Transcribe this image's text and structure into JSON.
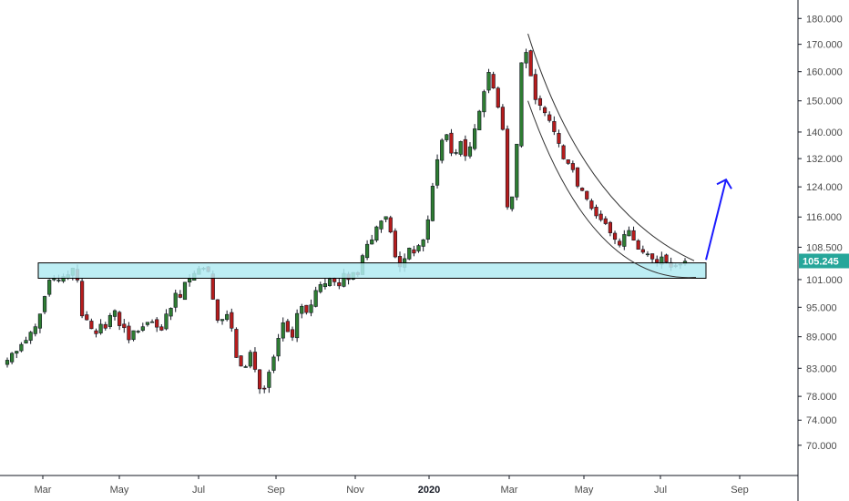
{
  "chart_data": {
    "type": "candlestick",
    "x_labels": [
      "Mar",
      "May",
      "Jul",
      "Sep",
      "Nov",
      "2020",
      "Mar",
      "May",
      "Jul",
      "Sep"
    ],
    "x_label_bold": [
      false,
      false,
      false,
      false,
      false,
      true,
      false,
      false,
      false,
      false
    ],
    "y_ticks": [
      70,
      74,
      78,
      83,
      89,
      95,
      101,
      108.5,
      116,
      124,
      132,
      140,
      150,
      160,
      170,
      180
    ],
    "y_tick_labels": [
      "70.000",
      "74.000",
      "78.000",
      "83.000",
      "89.000",
      "95.000",
      "101.000",
      "108.500",
      "116.000",
      "124.000",
      "132.000",
      "140.000",
      "150.000",
      "160.000",
      "170.000",
      "180.000"
    ],
    "ylim": [
      66,
      186
    ],
    "log_scale": true,
    "grid": false,
    "current_price": 105.245,
    "current_price_label": "105.245",
    "up_color": "#26a69a",
    "down_color": "#ef5350",
    "candle_body_up": "#2e7d32",
    "candle_body_down": "#b71c1c",
    "price_tag_color": "#26a69a",
    "zone_color": "#b2ebf2",
    "zone_border": "#000000",
    "arrow_color": "#1a1aff",
    "support_zone": {
      "top": 104.8,
      "bottom": 101.3
    },
    "closes": [
      84.5,
      85.8,
      86.2,
      87.5,
      88.3,
      89.9,
      91.0,
      93.6,
      97.3,
      100.9,
      101.2,
      100.9,
      101.7,
      102.1,
      103.6,
      100.9,
      93.2,
      92.4,
      90.6,
      89.6,
      91.5,
      90.7,
      93.3,
      94.3,
      91.2,
      90.8,
      88.4,
      90.2,
      90.1,
      91.0,
      91.9,
      92.0,
      90.9,
      90.3,
      93.6,
      94.8,
      98.0,
      97.1,
      100.4,
      101.2,
      102.4,
      103.5,
      103.6,
      102.8,
      96.7,
      92.3,
      92.5,
      93.5,
      90.7,
      85.0,
      83.4,
      83.3,
      86.0,
      82.8,
      79.3,
      79.4,
      82.3,
      85.1,
      88.7,
      91.8,
      90.0,
      88.9,
      93.7,
      95.2,
      93.9,
      95.5,
      98.6,
      99.9,
      100.1,
      101.1,
      100.5,
      99.6,
      102.4,
      101.0,
      102.6,
      102.1,
      106.5,
      109.2,
      110.3,
      113.5,
      115.0,
      116.1,
      112.2,
      106.2,
      103.9,
      105.8,
      108.3,
      107.1,
      108.9,
      110.3,
      115.3,
      124.2,
      131.7,
      137.5,
      139.2,
      133.6,
      133.8,
      137.1,
      132.8,
      135.5,
      141.0,
      146.6,
      153.1,
      159.8,
      154.3,
      147.9,
      140.8,
      118.6,
      121.3,
      136.3,
      163.2,
      167.0,
      158.5,
      150.4,
      148.5,
      146.1,
      143.6,
      140.1,
      136.5,
      131.9,
      130.6,
      128.8,
      124.2,
      123.0,
      120.7,
      118.2,
      116.3,
      115.3,
      114.3,
      112.0,
      110.4,
      109.0,
      111.6,
      112.6,
      110.2,
      108.0,
      107.3,
      106.9,
      105.7,
      104.9,
      106.2,
      105.0,
      103.8,
      104.1,
      104.5,
      105.2
    ]
  }
}
